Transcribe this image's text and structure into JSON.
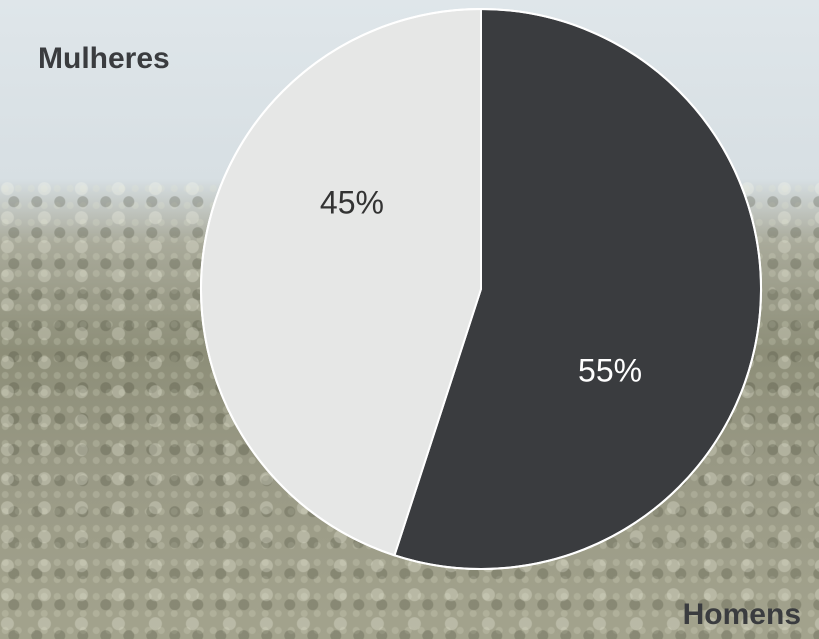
{
  "chart_data": {
    "type": "pie",
    "categories": [
      "Homens",
      "Mulheres"
    ],
    "values": [
      55,
      45
    ],
    "value_labels": [
      "55%",
      "45%"
    ],
    "colors": [
      "#3a3c3f",
      "#e6e7e6"
    ]
  }
}
